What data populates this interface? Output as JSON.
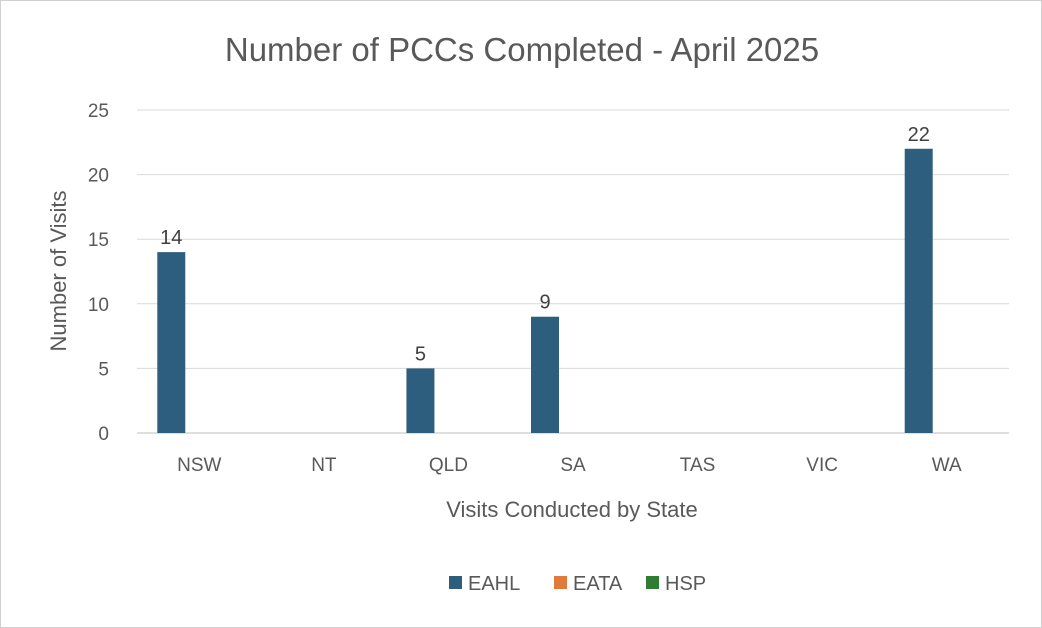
{
  "chart_data": {
    "type": "bar",
    "title": "Number of PCCs Completed - April 2025",
    "xlabel": "Visits Conducted by State",
    "ylabel": "Number of Visits",
    "categories": [
      "NSW",
      "NT",
      "QLD",
      "SA",
      "TAS",
      "VIC",
      "WA"
    ],
    "series": [
      {
        "name": "EAHL",
        "color": "#2e5e7e",
        "values": [
          14,
          null,
          5,
          9,
          null,
          null,
          22
        ]
      },
      {
        "name": "EATA",
        "color": "#e07b39",
        "values": [
          null,
          null,
          null,
          null,
          null,
          null,
          null
        ]
      },
      {
        "name": "HSP",
        "color": "#2e7d32",
        "values": [
          null,
          null,
          null,
          null,
          null,
          null,
          null
        ]
      }
    ],
    "ylim": [
      0,
      25
    ],
    "yticks": [
      0,
      5,
      10,
      15,
      20,
      25
    ],
    "grid": true,
    "legend": "bottom"
  }
}
